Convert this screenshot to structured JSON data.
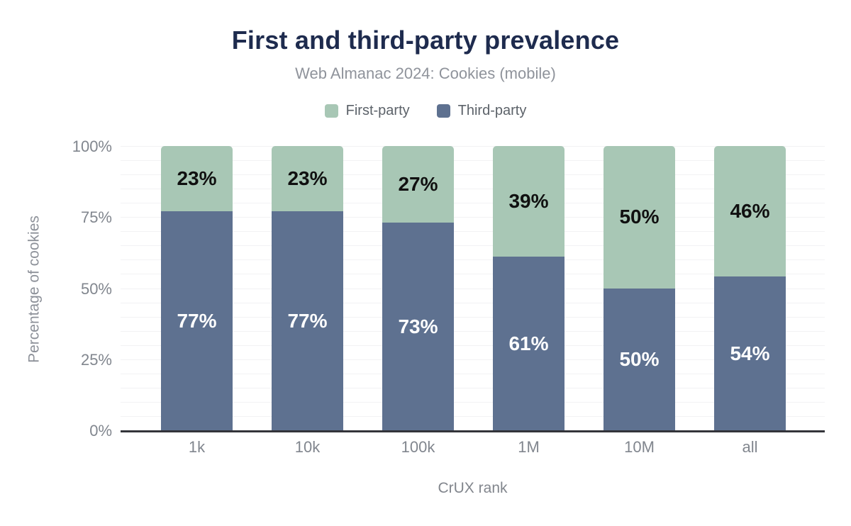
{
  "chart_data": {
    "type": "bar",
    "stacked": true,
    "title": "First and third-party prevalence",
    "subtitle": "Web Almanac 2024: Cookies (mobile)",
    "xlabel": "CrUX rank",
    "ylabel": "Percentage of cookies",
    "categories": [
      "1k",
      "10k",
      "100k",
      "1M",
      "10M",
      "all"
    ],
    "series": [
      {
        "name": "Third-party",
        "color": "#5e7190",
        "values": [
          77,
          77,
          73,
          61,
          50,
          54
        ]
      },
      {
        "name": "First-party",
        "color": "#a8c7b5",
        "values": [
          23,
          23,
          27,
          39,
          50,
          46
        ]
      }
    ],
    "value_label_format": "percent",
    "ylim": [
      0,
      100
    ],
    "y_ticks": [
      {
        "value": 0,
        "label": "0%"
      },
      {
        "value": 25,
        "label": "25%"
      },
      {
        "value": 50,
        "label": "50%"
      },
      {
        "value": 75,
        "label": "75%"
      },
      {
        "value": 100,
        "label": "100%"
      }
    ],
    "grid": {
      "horizontal": true,
      "interval_percent": 5,
      "color": "#f2f2f4"
    },
    "legend_position": "top",
    "legend": [
      {
        "label": "First-party",
        "color": "#a8c7b5"
      },
      {
        "label": "Third-party",
        "color": "#5e7190"
      }
    ],
    "colors": {
      "title": "#1e2b4e",
      "subtitle": "#8f939b",
      "axis_line": "#33343a",
      "tick_text": "#81868e",
      "first_party": "#a8c7b5",
      "third_party": "#5e7190"
    }
  }
}
